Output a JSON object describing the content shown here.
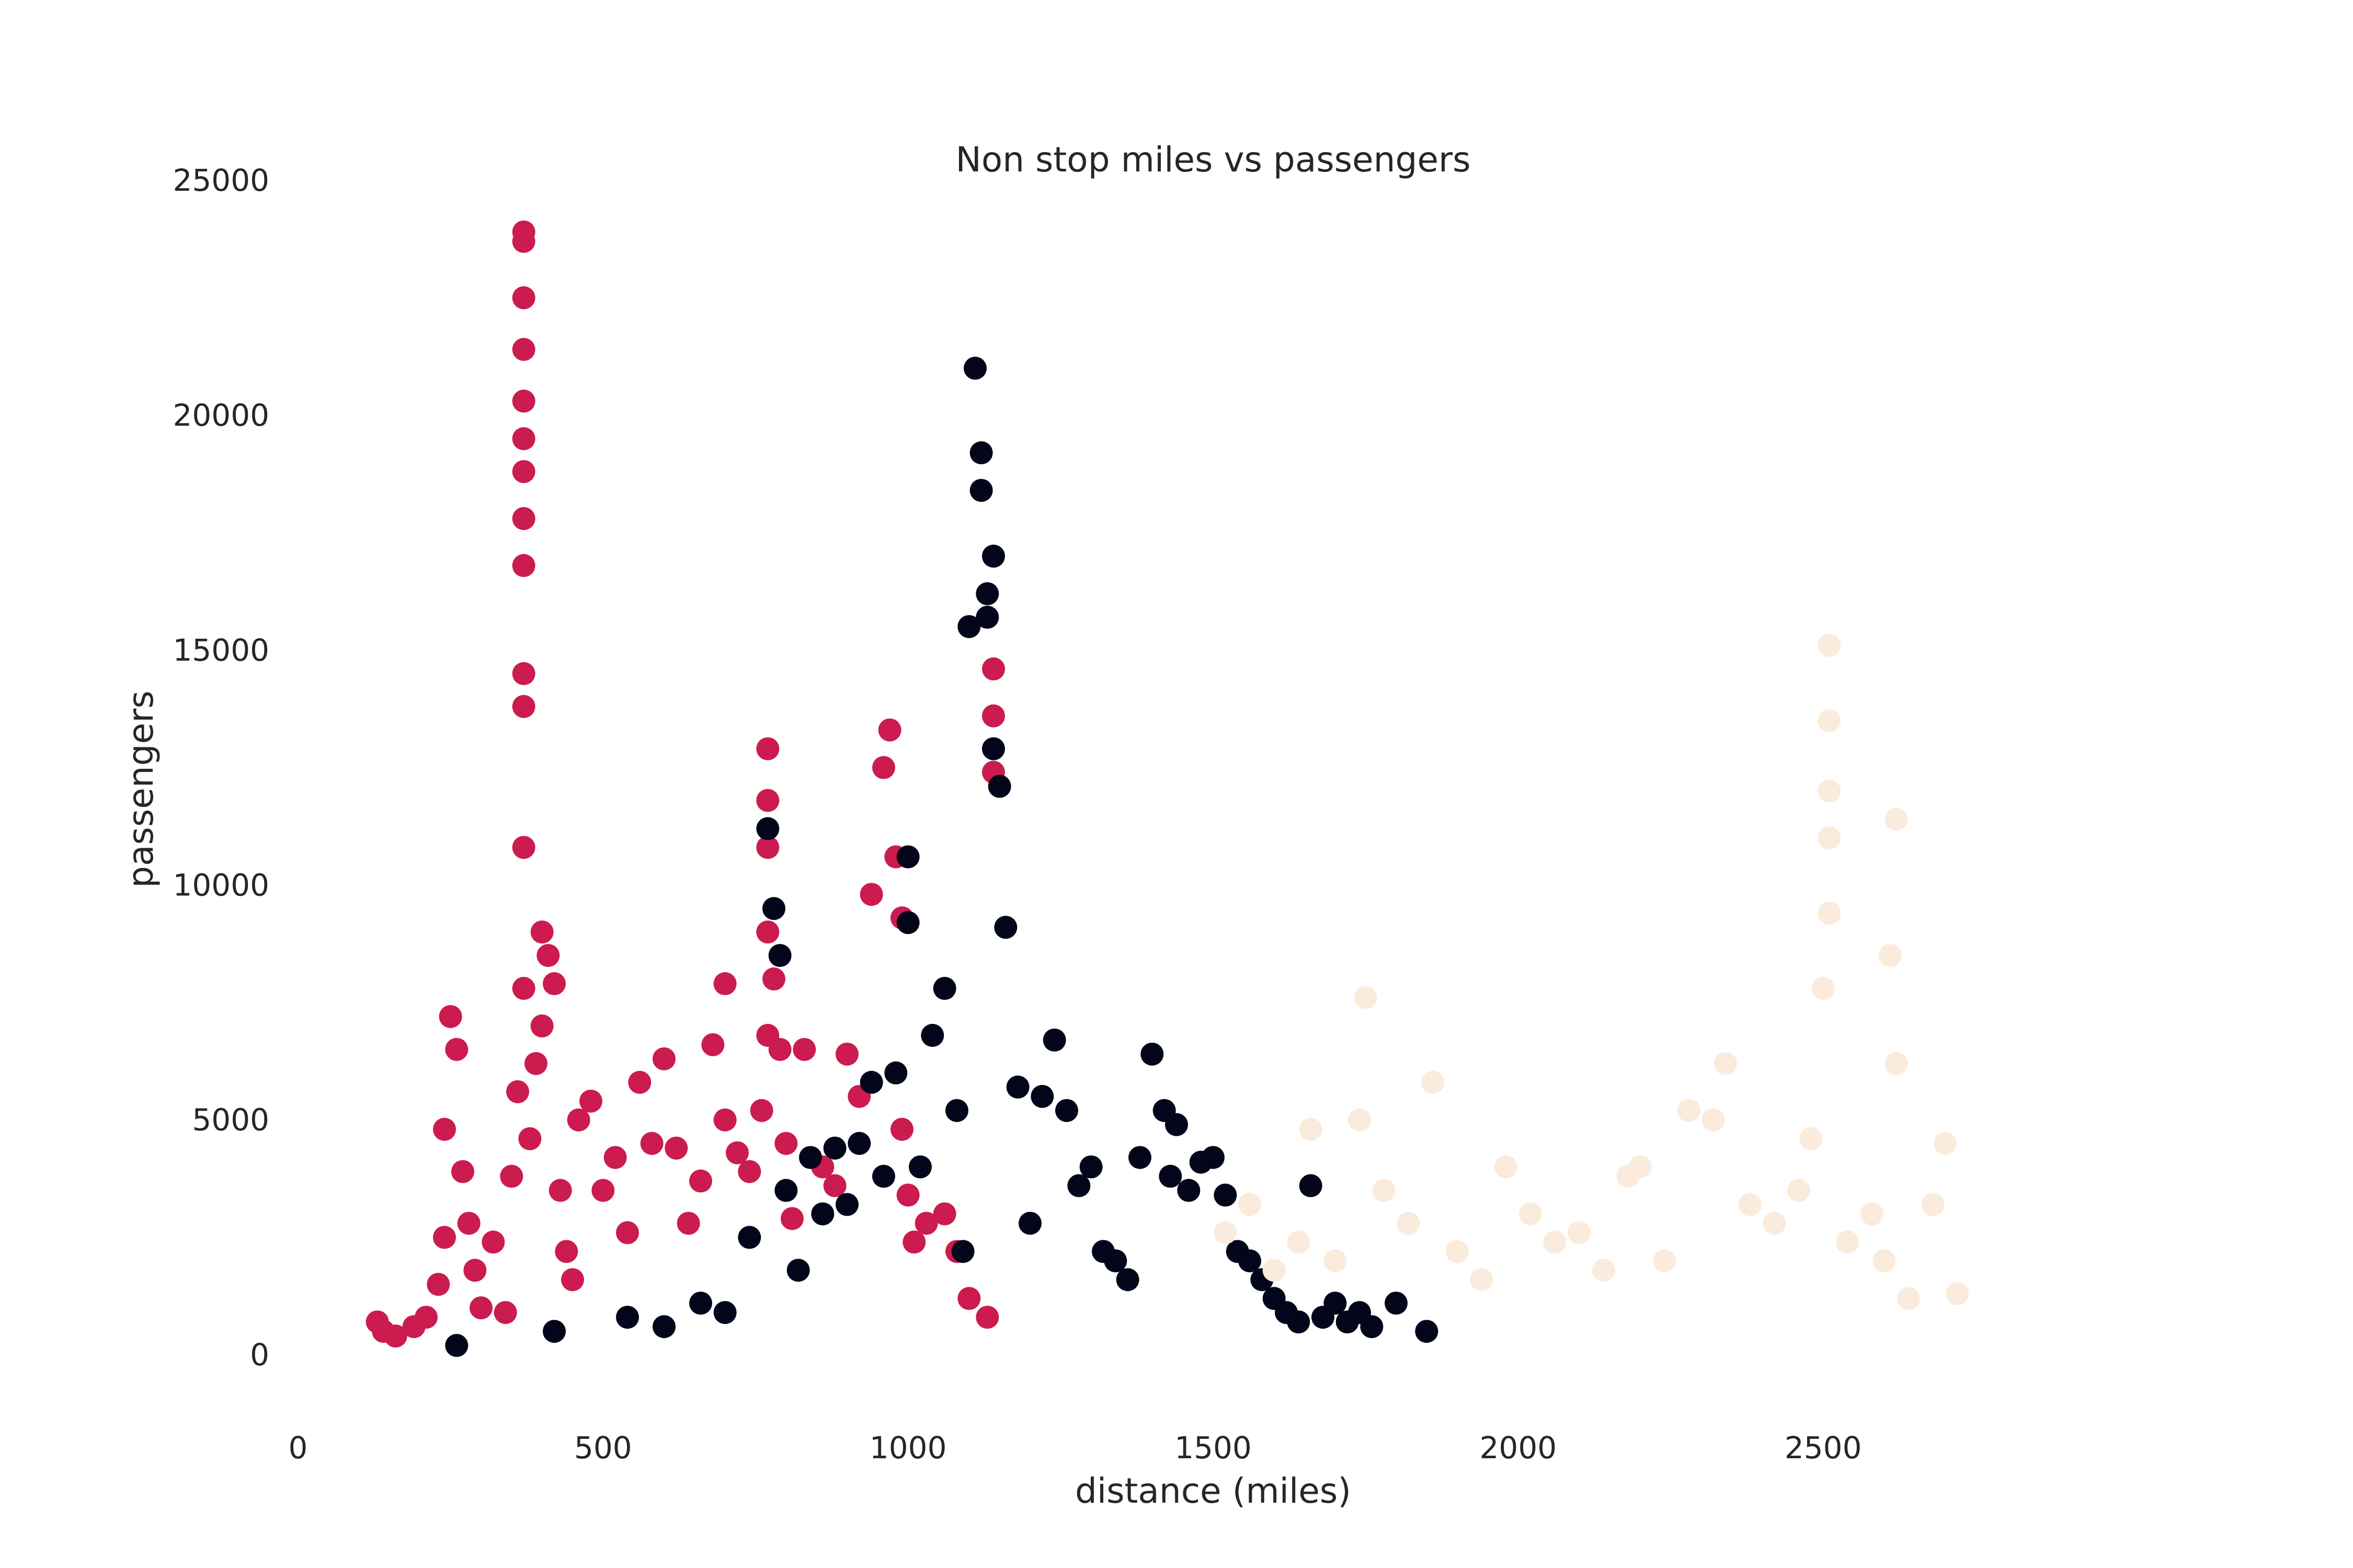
{
  "chart_data": {
    "type": "scatter",
    "title": "Non stop miles vs passengers",
    "xlabel": "distance (miles)",
    "ylabel": "passengers",
    "xlim": [
      0,
      3000
    ],
    "ylim": [
      -1200,
      25500
    ],
    "x_ticks": [
      "0",
      "500",
      "1000",
      "1500",
      "2000",
      "2500"
    ],
    "x_tick_values": [
      0,
      500,
      1000,
      1500,
      2000,
      2500
    ],
    "y_ticks": [
      "0",
      "5000",
      "10000",
      "15000",
      "20000",
      "25000"
    ],
    "y_tick_values": [
      0,
      5000,
      10000,
      15000,
      20000,
      25000
    ],
    "grid": false,
    "legend": "none",
    "colors": {
      "cluster_a": "#cb1b4f",
      "cluster_b": "#03051a",
      "cluster_c": "#faebdd"
    },
    "series": [
      {
        "color": "#cb1b4f",
        "x": [
          130,
          140,
          160,
          190,
          210,
          230,
          240,
          240,
          250,
          260,
          270,
          280,
          290,
          300,
          320,
          340,
          350,
          360,
          370,
          370,
          370,
          370,
          370,
          370,
          370,
          370,
          370,
          370,
          370,
          370,
          370,
          380,
          390,
          400,
          400,
          410,
          420,
          430,
          440,
          450,
          460,
          480,
          500,
          520,
          540,
          560,
          580,
          600,
          620,
          640,
          660,
          680,
          700,
          700,
          720,
          740,
          760,
          770,
          770,
          770,
          770,
          770,
          780,
          790,
          800,
          810,
          830,
          860,
          880,
          900,
          920,
          940,
          960,
          970,
          980,
          990,
          990,
          1000,
          1010,
          1030,
          1060,
          1080,
          1100,
          1130,
          1140,
          1140,
          1140
        ],
        "y": [
          700,
          500,
          400,
          600,
          800,
          1500,
          2500,
          4800,
          7200,
          6500,
          3900,
          2800,
          1800,
          1000,
          2400,
          900,
          3800,
          5600,
          10800,
          13800,
          14500,
          16800,
          17800,
          18800,
          19500,
          20300,
          21400,
          22500,
          23700,
          23900,
          7800,
          4600,
          6200,
          7000,
          9000,
          8500,
          7900,
          3500,
          2200,
          1600,
          5000,
          5400,
          3500,
          4200,
          2600,
          5800,
          4500,
          6300,
          4400,
          2800,
          3700,
          6600,
          7900,
          5000,
          4300,
          3900,
          5200,
          6800,
          9000,
          10800,
          12900,
          11800,
          8000,
          6500,
          4500,
          2900,
          6500,
          4000,
          3600,
          6400,
          5500,
          9800,
          12500,
          13300,
          10600,
          9300,
          4800,
          3400,
          2400,
          2800,
          3000,
          2200,
          1200,
          800,
          13600,
          14600,
          12400
        ]
      },
      {
        "color": "#03051a",
        "x": [
          260,
          420,
          540,
          600,
          660,
          700,
          740,
          770,
          780,
          790,
          800,
          820,
          840,
          860,
          880,
          900,
          920,
          940,
          960,
          980,
          1000,
          1000,
          1020,
          1040,
          1060,
          1080,
          1090,
          1100,
          1110,
          1120,
          1120,
          1130,
          1130,
          1140,
          1140,
          1150,
          1160,
          1180,
          1200,
          1220,
          1240,
          1260,
          1280,
          1300,
          1320,
          1340,
          1360,
          1380,
          1400,
          1420,
          1430,
          1440,
          1460,
          1480,
          1500,
          1520,
          1540,
          1560,
          1580,
          1600,
          1620,
          1640,
          1660,
          1680,
          1700,
          1720,
          1740,
          1760,
          1800,
          1850
        ],
        "y": [
          200,
          500,
          800,
          600,
          1100,
          900,
          2500,
          11200,
          9500,
          8500,
          3500,
          1800,
          4200,
          3000,
          4400,
          3200,
          4500,
          5800,
          3800,
          6000,
          9200,
          10600,
          4000,
          6800,
          7800,
          5200,
          2200,
          15500,
          21000,
          19200,
          18400,
          16200,
          15700,
          17000,
          12900,
          12100,
          9100,
          5700,
          2800,
          5500,
          6700,
          5200,
          3600,
          4000,
          2200,
          2000,
          1600,
          4200,
          6400,
          5200,
          3800,
          4900,
          3500,
          4100,
          4200,
          3400,
          2200,
          2000,
          1600,
          1200,
          900,
          700,
          3600,
          800,
          1100,
          700,
          900,
          600,
          1100,
          500
        ]
      },
      {
        "color": "#faebdd",
        "x": [
          1520,
          1560,
          1600,
          1640,
          1660,
          1700,
          1740,
          1750,
          1780,
          1820,
          1860,
          1900,
          1940,
          1980,
          2020,
          2060,
          2100,
          2140,
          2180,
          2200,
          2240,
          2280,
          2320,
          2340,
          2380,
          2420,
          2460,
          2480,
          2500,
          2510,
          2510,
          2510,
          2510,
          2510,
          2540,
          2580,
          2600,
          2610,
          2620,
          2620,
          2640,
          2680,
          2700,
          2720
        ],
        "y": [
          2600,
          3200,
          1800,
          2400,
          4800,
          2000,
          5000,
          7600,
          3500,
          2800,
          5800,
          2200,
          1600,
          4000,
          3000,
          2400,
          2600,
          1800,
          3800,
          4000,
          2000,
          5200,
          5000,
          6200,
          3200,
          2800,
          3500,
          4600,
          7800,
          9400,
          11000,
          12000,
          13500,
          15100,
          2400,
          3000,
          2000,
          8500,
          11400,
          6200,
          1200,
          3200,
          4500,
          1300
        ]
      }
    ]
  }
}
